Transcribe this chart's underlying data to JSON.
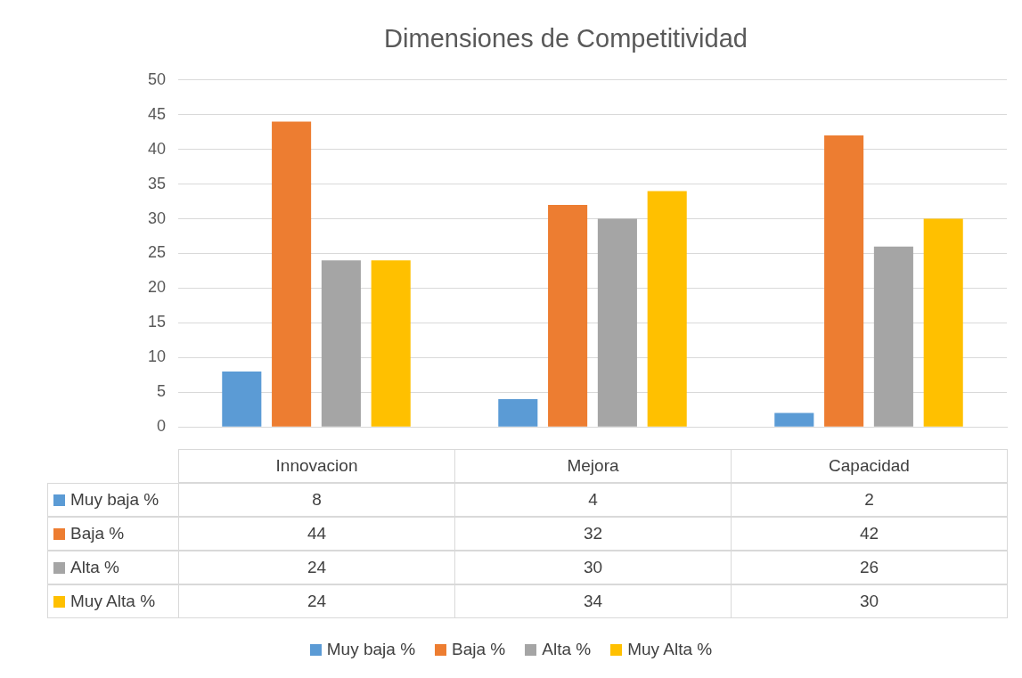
{
  "chart_data": {
    "type": "bar",
    "title": "Dimensiones de Competitividad",
    "categories": [
      "Innovacion",
      "Mejora",
      "Capacidad"
    ],
    "series": [
      {
        "name": "Muy baja %",
        "color": "#5b9bd5",
        "values": [
          8,
          4,
          2
        ]
      },
      {
        "name": "Baja %",
        "color": "#ed7d31",
        "values": [
          44,
          32,
          42
        ]
      },
      {
        "name": "Alta %",
        "color": "#a5a5a5",
        "values": [
          24,
          30,
          26
        ]
      },
      {
        "name": "Muy Alta %",
        "color": "#ffc000",
        "values": [
          24,
          34,
          30
        ]
      }
    ],
    "ylim": [
      0,
      50
    ],
    "yticks": [
      0,
      5,
      10,
      15,
      20,
      25,
      30,
      35,
      40,
      45,
      50
    ],
    "grid": "y",
    "legend": "bottom",
    "data_labels": true
  }
}
